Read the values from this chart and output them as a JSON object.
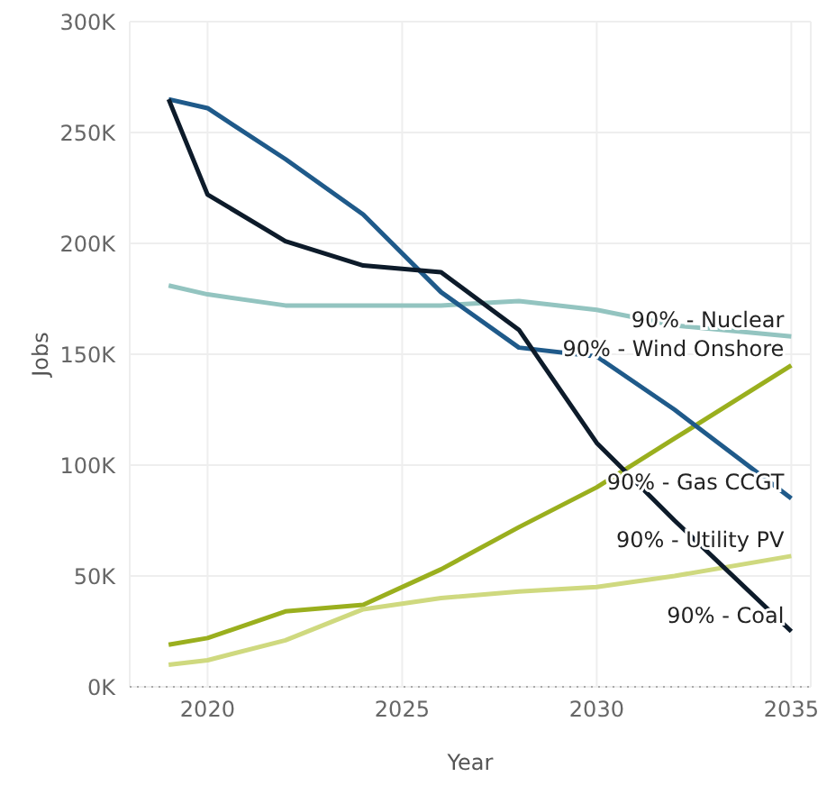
{
  "chart_data": {
    "type": "line",
    "xlabel": "Year",
    "ylabel": "Jobs",
    "x": [
      2019,
      2020,
      2022,
      2024,
      2026,
      2028,
      2030,
      2032,
      2035
    ],
    "series": [
      {
        "name": "90% - Nuclear",
        "color": "#93c4c0",
        "values": [
          181000,
          177000,
          172000,
          172000,
          172000,
          174000,
          170000,
          163000,
          158000
        ]
      },
      {
        "name": "90% - Wind Onshore",
        "color": "#9aaf1e",
        "values": [
          19000,
          22000,
          34000,
          37000,
          53000,
          72000,
          90000,
          112000,
          145000
        ]
      },
      {
        "name": "90% - Gas CCGT",
        "color": "#1f5a8a",
        "values": [
          265000,
          261000,
          238000,
          213000,
          178000,
          153000,
          149000,
          125000,
          85000
        ]
      },
      {
        "name": "90% - Utility PV",
        "color": "#cfd97f",
        "values": [
          10000,
          12000,
          21000,
          35000,
          40000,
          43000,
          45000,
          50000,
          59000
        ]
      },
      {
        "name": "90% - Coal",
        "color": "#0d1b2a",
        "values": [
          265000,
          222000,
          201000,
          190000,
          187000,
          161000,
          110000,
          75000,
          25000
        ]
      }
    ],
    "xlim": [
      2018,
      2035.5
    ],
    "xticks": [
      2020,
      2025,
      2030,
      2035
    ],
    "ylim": [
      0,
      300000
    ],
    "yticks": [
      {
        "value": 0,
        "label": "0K"
      },
      {
        "value": 50000,
        "label": "50K"
      },
      {
        "value": 100000,
        "label": "100K"
      },
      {
        "value": 150000,
        "label": "150K"
      },
      {
        "value": 200000,
        "label": "200K"
      },
      {
        "value": 250000,
        "label": "250K"
      },
      {
        "value": 300000,
        "label": "300K"
      }
    ],
    "ref_lines": [
      {
        "axis": "y",
        "value": 0,
        "color": "#aaaaaa",
        "line_style": "dotted"
      }
    ],
    "grid": true,
    "legend": false,
    "marker": "none",
    "line_style": "solid"
  }
}
